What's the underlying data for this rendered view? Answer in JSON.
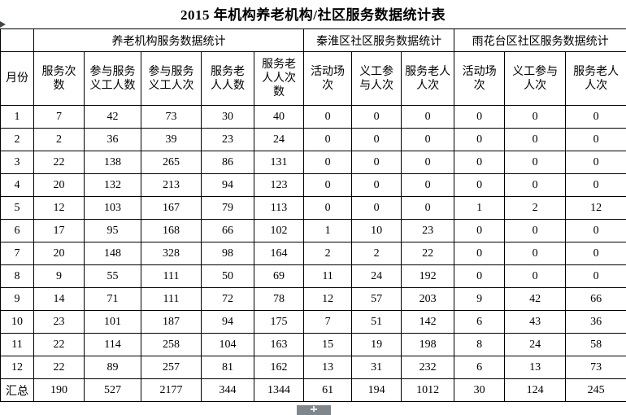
{
  "title": "2015 年机构养老机构/社区服务数据统计表",
  "colors": {
    "table_border": "#000000",
    "text": "#000000",
    "scroll_thumb": "#7f878d",
    "cursor_arrow": "#3d4750"
  },
  "table": {
    "corner_label": "",
    "groups": [
      {
        "label": "养老机构服务数据统计",
        "span": 5
      },
      {
        "label": "秦淮区社区服务数据统计",
        "span": 3
      },
      {
        "label": "雨花台区社区服务数据统计",
        "span": 3
      }
    ],
    "columns": [
      "月份",
      "服务次\n数",
      "参与服务\n义工人数",
      "参与服务\n义工人次",
      "服务老\n人人数",
      "服务老\n人人次\n数",
      "活动场\n次",
      "义工参\n与人次",
      "服务老人\n人次",
      "活动场\n次",
      "义工参与\n人次",
      "服务老人\n人次"
    ],
    "rows": [
      [
        "1",
        "7",
        "42",
        "73",
        "30",
        "40",
        "0",
        "0",
        "0",
        "0",
        "0",
        "0"
      ],
      [
        "2",
        "2",
        "36",
        "39",
        "23",
        "24",
        "0",
        "0",
        "0",
        "0",
        "0",
        "0"
      ],
      [
        "3",
        "22",
        "138",
        "265",
        "86",
        "131",
        "0",
        "0",
        "0",
        "0",
        "0",
        "0"
      ],
      [
        "4",
        "20",
        "132",
        "213",
        "94",
        "123",
        "0",
        "0",
        "0",
        "0",
        "0",
        "0"
      ],
      [
        "5",
        "12",
        "103",
        "167",
        "79",
        "113",
        "0",
        "0",
        "0",
        "1",
        "2",
        "12"
      ],
      [
        "6",
        "17",
        "95",
        "168",
        "66",
        "102",
        "1",
        "10",
        "23",
        "0",
        "0",
        "0"
      ],
      [
        "7",
        "20",
        "148",
        "328",
        "98",
        "164",
        "2",
        "2",
        "22",
        "0",
        "0",
        "0"
      ],
      [
        "8",
        "9",
        "55",
        "111",
        "50",
        "69",
        "11",
        "24",
        "192",
        "0",
        "0",
        "0"
      ],
      [
        "9",
        "14",
        "71",
        "111",
        "72",
        "78",
        "12",
        "57",
        "203",
        "9",
        "42",
        "66"
      ],
      [
        "10",
        "23",
        "101",
        "187",
        "94",
        "175",
        "7",
        "51",
        "142",
        "6",
        "43",
        "36"
      ],
      [
        "11",
        "22",
        "114",
        "258",
        "104",
        "163",
        "15",
        "19",
        "198",
        "8",
        "24",
        "58"
      ],
      [
        "12",
        "22",
        "89",
        "257",
        "81",
        "162",
        "13",
        "31",
        "232",
        "6",
        "13",
        "73"
      ]
    ],
    "summary": [
      "汇总",
      "190",
      "527",
      "2177",
      "344",
      "1344",
      "61",
      "194",
      "1012",
      "30",
      "124",
      "245"
    ]
  }
}
